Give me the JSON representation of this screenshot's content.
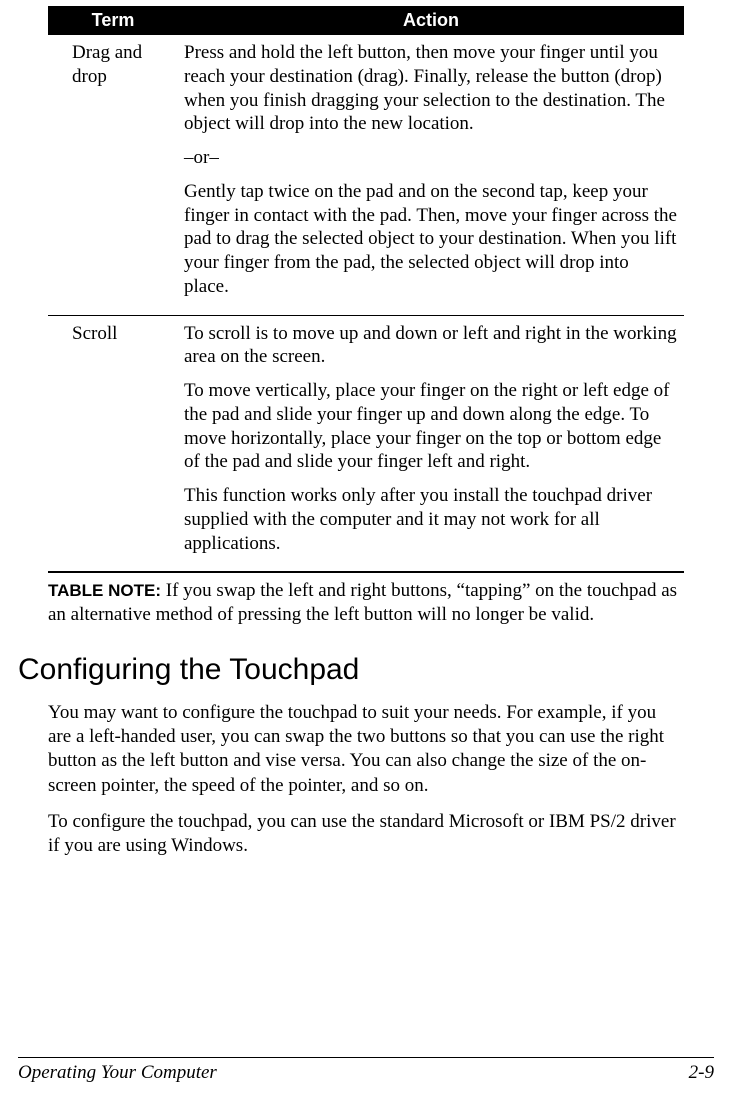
{
  "table": {
    "headers": {
      "term": "Term",
      "action": "Action"
    },
    "rows": [
      {
        "term": "Drag and drop",
        "paras": [
          "Press and hold the left button, then move your finger until you reach your destination (drag). Finally, release the button (drop) when you finish dragging your selection to the destination. The object will drop into the new location.",
          "–or–",
          "Gently tap twice on the pad and on the second tap, keep your finger in contact with the pad. Then, move your finger across the pad to drag the selected object to your destination. When you lift your finger from the pad, the selected object will drop into place."
        ]
      },
      {
        "term": "Scroll",
        "paras": [
          "To scroll is to move up and down or left and right in the working area on the screen.",
          "To move vertically, place your finger on the right or left edge of the pad and slide your finger up and down along the edge. To move horizontally, place your finger on the top or bottom edge of the pad and slide your finger left and right.",
          "This function works only after you install the touchpad driver supplied with the computer and it may not work for all applications."
        ]
      }
    ]
  },
  "table_note": {
    "label": "TABLE NOTE:",
    "text": " If you swap the left and right buttons, “tapping” on the touchpad as an alternative method of pressing the left button will no longer be valid."
  },
  "section": {
    "heading": "Configuring the Touchpad",
    "paras": [
      "You may want to configure the touchpad to suit your needs. For example, if you are a left-handed user, you can swap the two buttons so that you can use the right button as the left button and vise versa. You can also change the size of the on-screen pointer, the speed of the pointer, and so on.",
      "To configure the touchpad, you can use the standard Microsoft or IBM PS/2 driver if you are using Windows."
    ]
  },
  "footer": {
    "left": "Operating Your Computer",
    "right": "2-9"
  }
}
